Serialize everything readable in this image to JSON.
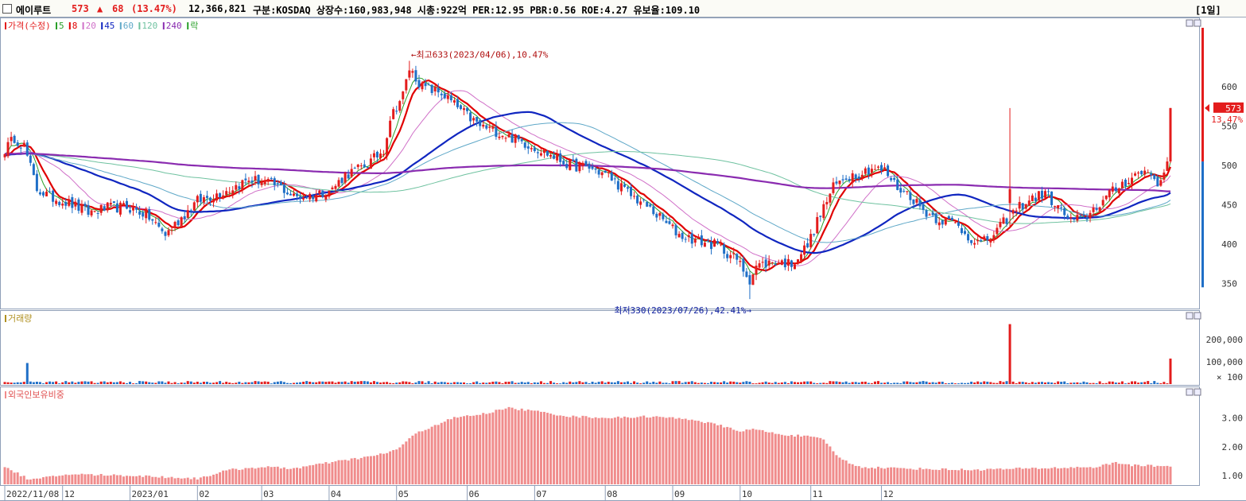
{
  "header": {
    "stock_name": "에이루트",
    "price": "573",
    "change_arrow": "▲",
    "change": "68",
    "change_pct": "(13.47%)",
    "volume": "12,366,821",
    "info": "구분:KOSDAQ 상장수:160,983,948 시총:922억 PER:12.95 PBR:0.56 ROE:4.27 유보율:109.10",
    "period": "[1일]"
  },
  "colors": {
    "up": "#e31c1c",
    "down": "#1f6fc7",
    "ma5": "#2aa02a",
    "ma8": "#e00000",
    "ma20": "#d070c8",
    "ma45": "#1026c0",
    "ma60": "#5fa8c8",
    "ma120": "#6fc2a0",
    "ma240": "#8a2bb0",
    "foreign": "#f08c8c",
    "border": "#8f9fb8"
  },
  "legend_price": [
    {
      "text": "가격(수정)",
      "color": "#e31c1c"
    },
    {
      "text": "5",
      "color": "#2aa02a"
    },
    {
      "text": "8",
      "color": "#e00000"
    },
    {
      "text": "20",
      "color": "#d070c8"
    },
    {
      "text": "45",
      "color": "#1026c0"
    },
    {
      "text": "60",
      "color": "#5fa8c8"
    },
    {
      "text": "120",
      "color": "#6fc2a0"
    },
    {
      "text": "240",
      "color": "#8a2bb0"
    },
    {
      "text": "락",
      "color": "#2aa02a"
    }
  ],
  "legend_volume": "거래량",
  "legend_foreign": "외국인보유비중",
  "annotations": {
    "high": "←최고633(2023/04/06),10.47%",
    "low": "최저330(2023/07/26),42.41%→"
  },
  "price_tag": {
    "value": "573",
    "pct": "13.47%"
  },
  "volume_unit": "× 100",
  "chart_data": [
    {
      "type": "candlestick",
      "title": "가격(수정)",
      "x_ticks": [
        "2022/11/08",
        "12",
        "2023/01",
        "02",
        "03",
        "04",
        "05",
        "06",
        "07",
        "08",
        "09",
        "10",
        "11",
        "12"
      ],
      "y_ticks": [
        350,
        400,
        450,
        500,
        550,
        600
      ],
      "ylim": [
        318,
        680
      ],
      "high": {
        "value": 633,
        "date": "2023/04/06"
      },
      "low": {
        "value": 330,
        "date": "2023/07/26"
      },
      "last_close": 573,
      "close_anchors": [
        [
          0,
          520
        ],
        [
          3,
          535
        ],
        [
          6,
          525
        ],
        [
          10,
          470
        ],
        [
          14,
          460
        ],
        [
          20,
          452
        ],
        [
          26,
          440
        ],
        [
          32,
          446
        ],
        [
          38,
          447
        ],
        [
          44,
          438
        ],
        [
          50,
          412
        ],
        [
          53,
          425
        ],
        [
          56,
          438
        ],
        [
          60,
          455
        ],
        [
          65,
          462
        ],
        [
          70,
          470
        ],
        [
          76,
          482
        ],
        [
          80,
          480
        ],
        [
          86,
          472
        ],
        [
          90,
          460
        ],
        [
          96,
          462
        ],
        [
          102,
          470
        ],
        [
          106,
          488
        ],
        [
          110,
          495
        ],
        [
          114,
          505
        ],
        [
          118,
          520
        ],
        [
          120,
          560
        ],
        [
          124,
          590
        ],
        [
          126,
          623
        ],
        [
          130,
          600
        ],
        [
          136,
          592
        ],
        [
          142,
          570
        ],
        [
          148,
          550
        ],
        [
          152,
          545
        ],
        [
          158,
          535
        ],
        [
          164,
          525
        ],
        [
          170,
          513
        ],
        [
          176,
          500
        ],
        [
          182,
          497
        ],
        [
          188,
          487
        ],
        [
          194,
          465
        ],
        [
          200,
          448
        ],
        [
          205,
          430
        ],
        [
          210,
          412
        ],
        [
          216,
          404
        ],
        [
          222,
          398
        ],
        [
          228,
          380
        ],
        [
          232,
          355
        ],
        [
          234,
          372
        ],
        [
          240,
          378
        ],
        [
          245,
          375
        ],
        [
          250,
          398
        ],
        [
          254,
          438
        ],
        [
          258,
          472
        ],
        [
          262,
          486
        ],
        [
          266,
          490
        ],
        [
          270,
          497
        ],
        [
          274,
          493
        ],
        [
          278,
          472
        ],
        [
          282,
          462
        ],
        [
          286,
          443
        ],
        [
          290,
          433
        ],
        [
          296,
          426
        ],
        [
          300,
          410
        ],
        [
          304,
          400
        ],
        [
          308,
          412
        ],
        [
          312,
          432
        ],
        [
          316,
          448
        ],
        [
          320,
          458
        ],
        [
          324,
          465
        ],
        [
          328,
          446
        ],
        [
          332,
          430
        ],
        [
          336,
          432
        ],
        [
          340,
          448
        ],
        [
          344,
          463
        ],
        [
          348,
          477
        ],
        [
          352,
          488
        ],
        [
          356,
          493
        ],
        [
          360,
          475
        ],
        [
          362,
          505
        ],
        [
          363,
          573
        ]
      ],
      "ma_periods": [
        5,
        8,
        20,
        45,
        60,
        120,
        240
      ]
    },
    {
      "type": "bar",
      "title": "거래량",
      "unit": "× 100",
      "y_ticks": [
        100000,
        200000
      ],
      "ylim": [
        0,
        290000
      ],
      "spikes": [
        {
          "index": 7,
          "value": 95000
        },
        {
          "index": 313,
          "value": 270000
        },
        {
          "index": 363,
          "value": 115000
        }
      ],
      "baseline_range": [
        3000,
        14000
      ]
    },
    {
      "type": "bar",
      "title": "외국인보유비중",
      "y_ticks": [
        1.0,
        2.0,
        3.0
      ],
      "ylim": [
        0.7,
        3.7
      ],
      "anchors": [
        [
          0,
          1.3
        ],
        [
          8,
          0.85
        ],
        [
          20,
          1.05
        ],
        [
          40,
          1.0
        ],
        [
          60,
          0.9
        ],
        [
          70,
          1.2
        ],
        [
          80,
          1.3
        ],
        [
          90,
          1.25
        ],
        [
          104,
          1.5
        ],
        [
          116,
          1.7
        ],
        [
          122,
          1.9
        ],
        [
          128,
          2.45
        ],
        [
          134,
          2.75
        ],
        [
          140,
          3.0
        ],
        [
          150,
          3.15
        ],
        [
          156,
          3.35
        ],
        [
          164,
          3.25
        ],
        [
          176,
          3.05
        ],
        [
          190,
          3.0
        ],
        [
          200,
          3.05
        ],
        [
          214,
          2.95
        ],
        [
          224,
          2.7
        ],
        [
          228,
          2.55
        ],
        [
          234,
          2.6
        ],
        [
          240,
          2.45
        ],
        [
          250,
          2.35
        ],
        [
          255,
          2.25
        ],
        [
          260,
          1.6
        ],
        [
          266,
          1.3
        ],
        [
          280,
          1.25
        ],
        [
          300,
          1.2
        ],
        [
          320,
          1.25
        ],
        [
          340,
          1.3
        ],
        [
          346,
          1.45
        ],
        [
          352,
          1.35
        ],
        [
          363,
          1.33
        ]
      ]
    }
  ]
}
